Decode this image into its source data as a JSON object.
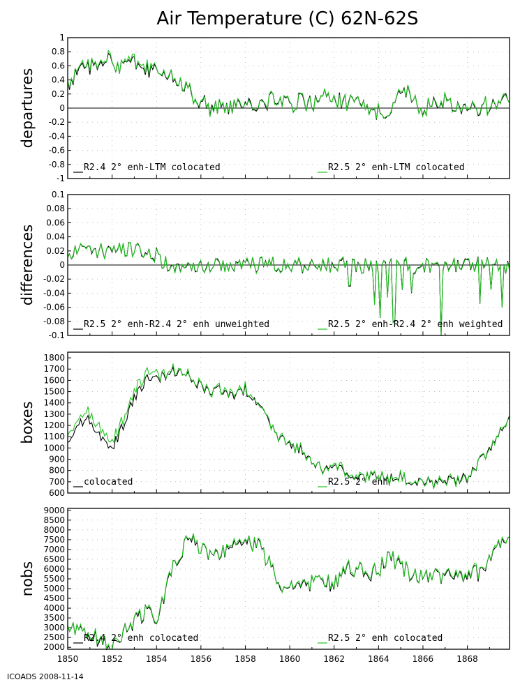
{
  "title": "Air Temperature (C) 62N-62S",
  "footer": "ICOADS 2008-11-14",
  "colors": {
    "series_a": "#000000",
    "series_b": "#22c422",
    "frame": "#000000"
  },
  "x_axis": {
    "range": [
      1850,
      1869.9
    ],
    "tick_labels": [
      "1850",
      "1852",
      "1854",
      "1856",
      "1858",
      "1860",
      "1862",
      "1864",
      "1866",
      "1868"
    ]
  },
  "chart_data": [
    {
      "type": "line",
      "ylabel": "departures",
      "ylim": [
        -1,
        1
      ],
      "yticks": [
        "-1",
        "-0.8",
        "-0.6",
        "-0.4",
        "-0.2",
        "0",
        "0.2",
        "0.4",
        "0.6",
        "0.8",
        "1"
      ],
      "zero_line": true,
      "legend": [
        "R2.4 2° enh-LTM colocated",
        "R2.5 2° enh-LTM colocated"
      ],
      "anchors": [
        [
          1850,
          0.3
        ],
        [
          1850.3,
          0.45
        ],
        [
          1850.6,
          0.5
        ],
        [
          1851,
          0.6
        ],
        [
          1851.4,
          0.65
        ],
        [
          1851.8,
          0.68
        ],
        [
          1852.2,
          0.55
        ],
        [
          1852.7,
          0.6
        ],
        [
          1853.2,
          0.62
        ],
        [
          1853.6,
          0.52
        ],
        [
          1854,
          0.55
        ],
        [
          1854.5,
          0.45
        ],
        [
          1855,
          0.35
        ],
        [
          1855.5,
          0.2
        ],
        [
          1856,
          0.1
        ],
        [
          1856.5,
          0.0
        ],
        [
          1857,
          0.05
        ],
        [
          1857.5,
          0.0
        ],
        [
          1858,
          0.02
        ],
        [
          1858.5,
          0.05
        ],
        [
          1859,
          0.1
        ],
        [
          1859.5,
          0.12
        ],
        [
          1860,
          0.05
        ],
        [
          1860.5,
          0.1
        ],
        [
          1861,
          0.05
        ],
        [
          1861.5,
          0.15
        ],
        [
          1862,
          0.1
        ],
        [
          1862.5,
          0.1
        ],
        [
          1863,
          0.05
        ],
        [
          1863.5,
          -0.05
        ],
        [
          1864,
          -0.05
        ],
        [
          1864.5,
          0.0
        ],
        [
          1865,
          0.3
        ],
        [
          1865.5,
          0.15
        ],
        [
          1866,
          0.0
        ],
        [
          1866.5,
          0.05
        ],
        [
          1867,
          0.1
        ],
        [
          1867.5,
          0.05
        ],
        [
          1868,
          -0.05
        ],
        [
          1868.5,
          0.0
        ],
        [
          1869,
          0.05
        ],
        [
          1869.9,
          0.1
        ]
      ],
      "noise": 0.13,
      "diff": [
        [
          1850,
          0.02
        ],
        [
          1854,
          0.03
        ],
        [
          1855,
          0.0
        ],
        [
          1869.9,
          0.0
        ]
      ],
      "diff_noise": 0.03,
      "b_is_a_plus_diff": true
    },
    {
      "type": "line",
      "ylabel": "differences",
      "ylim": [
        -0.1,
        0.1
      ],
      "yticks": [
        "-0.1",
        "-0.08",
        "-0.06",
        "-0.04",
        "-0.02",
        "0",
        "0.02",
        "0.04",
        "0.06",
        "0.08",
        "0.1"
      ],
      "zero_line": true,
      "legend": [
        "R2.5 2° enh-R2.4 2° enh unweighted",
        "R2.5 2° enh-R2.4 2° enh weighted"
      ],
      "anchors": [
        [
          1850,
          0.02
        ],
        [
          1851,
          0.02
        ],
        [
          1852,
          0.02
        ],
        [
          1853,
          0.02
        ],
        [
          1854,
          0.015
        ],
        [
          1854.3,
          0.002
        ],
        [
          1855,
          0.001
        ],
        [
          1861.5,
          0.0
        ],
        [
          1869.9,
          0.0
        ]
      ],
      "noise": 0.012,
      "spikes": [
        [
          1862.7,
          -0.03
        ],
        [
          1863.8,
          -0.055
        ],
        [
          1864.1,
          -0.075
        ],
        [
          1864.4,
          -0.045
        ],
        [
          1864.7,
          -0.08
        ],
        [
          1865.1,
          -0.035
        ],
        [
          1865.5,
          -0.04
        ],
        [
          1866.8,
          -0.1
        ],
        [
          1867.5,
          -0.01
        ],
        [
          1868.6,
          -0.055
        ],
        [
          1869.1,
          -0.035
        ],
        [
          1869.6,
          -0.06
        ]
      ],
      "diff": [
        [
          1850,
          0.0
        ],
        [
          1869.9,
          0.0
        ]
      ],
      "diff_noise": 0.004,
      "b_is_a_plus_diff": true
    },
    {
      "type": "line",
      "ylabel": "boxes",
      "ylim": [
        600,
        1850
      ],
      "yticks": [
        "600",
        "700",
        "800",
        "900",
        "1000",
        "1100",
        "1200",
        "1300",
        "1400",
        "1500",
        "1600",
        "1700",
        "1800"
      ],
      "zero_line": false,
      "legend": [
        "colocated",
        "R2.5 2° enh"
      ],
      "anchors": [
        [
          1850,
          1050
        ],
        [
          1850.5,
          1200
        ],
        [
          1851,
          1250
        ],
        [
          1851.3,
          1150
        ],
        [
          1851.7,
          1050
        ],
        [
          1852,
          1000
        ],
        [
          1852.5,
          1200
        ],
        [
          1853,
          1450
        ],
        [
          1853.5,
          1600
        ],
        [
          1854,
          1620
        ],
        [
          1854.5,
          1660
        ],
        [
          1855,
          1680
        ],
        [
          1855.5,
          1620
        ],
        [
          1856,
          1550
        ],
        [
          1856.5,
          1500
        ],
        [
          1857,
          1520
        ],
        [
          1857.5,
          1480
        ],
        [
          1858,
          1520
        ],
        [
          1858.5,
          1400
        ],
        [
          1859,
          1250
        ],
        [
          1859.5,
          1100
        ],
        [
          1860,
          1020
        ],
        [
          1860.5,
          980
        ],
        [
          1861,
          880
        ],
        [
          1861.5,
          800
        ],
        [
          1862,
          830
        ],
        [
          1862.5,
          790
        ],
        [
          1863,
          760
        ],
        [
          1863.5,
          740
        ],
        [
          1864,
          760
        ],
        [
          1864.5,
          720
        ],
        [
          1865,
          740
        ],
        [
          1865.5,
          700
        ],
        [
          1866,
          700
        ],
        [
          1866.5,
          690
        ],
        [
          1867,
          710
        ],
        [
          1867.5,
          700
        ],
        [
          1868,
          740
        ],
        [
          1868.5,
          860
        ],
        [
          1869,
          1000
        ],
        [
          1869.5,
          1150
        ],
        [
          1869.9,
          1250
        ]
      ],
      "noise": 50,
      "diff": [
        [
          1850,
          60
        ],
        [
          1853.5,
          60
        ],
        [
          1854.5,
          10
        ],
        [
          1869.9,
          0
        ]
      ],
      "diff_noise": 25,
      "b_is_a_plus_diff": true
    },
    {
      "type": "line",
      "ylabel": "nobs",
      "ylim": [
        1900,
        9100
      ],
      "yticks": [
        "2000",
        "2500",
        "3000",
        "3500",
        "4000",
        "4500",
        "5000",
        "5500",
        "6000",
        "6500",
        "7000",
        "7500",
        "8000",
        "8500",
        "9000"
      ],
      "zero_line": false,
      "legend": [
        "R2.4 2° enh colocated",
        "R2.5 2° enh colocated"
      ],
      "anchors": [
        [
          1850,
          2800
        ],
        [
          1850.5,
          2800
        ],
        [
          1851,
          2700
        ],
        [
          1851.5,
          2300
        ],
        [
          1852,
          2200
        ],
        [
          1852.5,
          2700
        ],
        [
          1853,
          3400
        ],
        [
          1853.5,
          3800
        ],
        [
          1854,
          3600
        ],
        [
          1854.3,
          4500
        ],
        [
          1854.7,
          6000
        ],
        [
          1855.2,
          7000
        ],
        [
          1855.5,
          7800
        ],
        [
          1856,
          6900
        ],
        [
          1856.5,
          6800
        ],
        [
          1857,
          6800
        ],
        [
          1857.5,
          7100
        ],
        [
          1858,
          7600
        ],
        [
          1858.5,
          7200
        ],
        [
          1859,
          6500
        ],
        [
          1859.5,
          5300
        ],
        [
          1860,
          5000
        ],
        [
          1860.5,
          5200
        ],
        [
          1861,
          5300
        ],
        [
          1861.5,
          5400
        ],
        [
          1862,
          5100
        ],
        [
          1862.5,
          6200
        ],
        [
          1863,
          6000
        ],
        [
          1863.5,
          5600
        ],
        [
          1864,
          6000
        ],
        [
          1864.5,
          6600
        ],
        [
          1865,
          6200
        ],
        [
          1865.5,
          5600
        ],
        [
          1866,
          5500
        ],
        [
          1866.5,
          5800
        ],
        [
          1867,
          5600
        ],
        [
          1867.5,
          5500
        ],
        [
          1868,
          5700
        ],
        [
          1868.5,
          5800
        ],
        [
          1869,
          6500
        ],
        [
          1869.5,
          7500
        ],
        [
          1869.9,
          7300
        ]
      ],
      "noise": 450,
      "diff": [
        [
          1850,
          50
        ],
        [
          1869.9,
          50
        ]
      ],
      "diff_noise": 90,
      "b_is_a_plus_diff": true
    }
  ]
}
